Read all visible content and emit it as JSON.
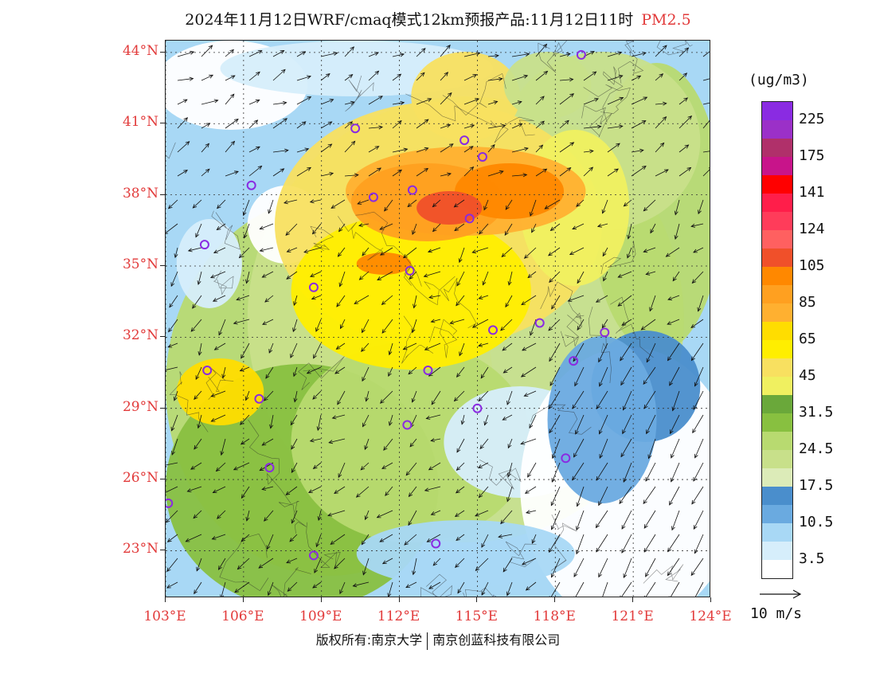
{
  "title": {
    "text": "2024年11月12日WRF/cmaq模式12km预报产品:11月12日11时",
    "pollutant": "PM2.5"
  },
  "map": {
    "lon_range": [
      103,
      124
    ],
    "lat_range": [
      21,
      44.5
    ],
    "lat_ticks": [
      {
        "value": 44,
        "label": "44°N"
      },
      {
        "value": 41,
        "label": "41°N"
      },
      {
        "value": 38,
        "label": "38°N"
      },
      {
        "value": 35,
        "label": "35°N"
      },
      {
        "value": 32,
        "label": "32°N"
      },
      {
        "value": 29,
        "label": "29°N"
      },
      {
        "value": 26,
        "label": "26°N"
      },
      {
        "value": 23,
        "label": "23°N"
      }
    ],
    "lon_ticks": [
      {
        "value": 103,
        "label": "103°E"
      },
      {
        "value": 106,
        "label": "106°E"
      },
      {
        "value": 109,
        "label": "109°E"
      },
      {
        "value": 112,
        "label": "112°E"
      },
      {
        "value": 115,
        "label": "115°E"
      },
      {
        "value": 118,
        "label": "118°E"
      },
      {
        "value": 121,
        "label": "121°E"
      },
      {
        "value": 124,
        "label": "124°E"
      }
    ],
    "cities": [
      {
        "lon": 119.0,
        "lat": 43.9
      },
      {
        "lon": 110.3,
        "lat": 40.8
      },
      {
        "lon": 114.5,
        "lat": 40.3
      },
      {
        "lon": 115.2,
        "lat": 39.6
      },
      {
        "lon": 111.0,
        "lat": 37.9
      },
      {
        "lon": 112.5,
        "lat": 38.2
      },
      {
        "lon": 114.7,
        "lat": 37.0
      },
      {
        "lon": 106.3,
        "lat": 38.4
      },
      {
        "lon": 104.5,
        "lat": 35.9
      },
      {
        "lon": 108.7,
        "lat": 34.1
      },
      {
        "lon": 112.4,
        "lat": 34.8
      },
      {
        "lon": 117.4,
        "lat": 32.6
      },
      {
        "lon": 115.6,
        "lat": 32.3
      },
      {
        "lon": 119.9,
        "lat": 32.2
      },
      {
        "lon": 118.7,
        "lat": 31.0
      },
      {
        "lon": 104.6,
        "lat": 30.6
      },
      {
        "lon": 113.1,
        "lat": 30.6
      },
      {
        "lon": 106.6,
        "lat": 29.4
      },
      {
        "lon": 115.0,
        "lat": 29.0
      },
      {
        "lon": 112.3,
        "lat": 28.3
      },
      {
        "lon": 107.0,
        "lat": 26.5
      },
      {
        "lon": 118.4,
        "lat": 26.9
      },
      {
        "lon": 103.1,
        "lat": 25.0
      },
      {
        "lon": 108.7,
        "lat": 22.8
      },
      {
        "lon": 113.4,
        "lat": 23.3
      }
    ]
  },
  "colorbar": {
    "unit": "(ug/m3)",
    "levels": [
      {
        "color": "#8a2be2",
        "label": "225"
      },
      {
        "color": "#9b30c8",
        "label": ""
      },
      {
        "color": "#b0306a",
        "label": "175"
      },
      {
        "color": "#c8148a",
        "label": ""
      },
      {
        "color": "#ff0000",
        "label": "141"
      },
      {
        "color": "#ff1e4a",
        "label": ""
      },
      {
        "color": "#ff3c5a",
        "label": "124"
      },
      {
        "color": "#ff6060",
        "label": ""
      },
      {
        "color": "#f0502a",
        "label": "105"
      },
      {
        "color": "#ff8800",
        "label": ""
      },
      {
        "color": "#ffa020",
        "label": "85"
      },
      {
        "color": "#ffb030",
        "label": ""
      },
      {
        "color": "#ffdd00",
        "label": "65"
      },
      {
        "color": "#ffee00",
        "label": ""
      },
      {
        "color": "#f8e060",
        "label": "45"
      },
      {
        "color": "#f0f060",
        "label": ""
      },
      {
        "color": "#6aa83a",
        "label": "31.5"
      },
      {
        "color": "#88c040",
        "label": ""
      },
      {
        "color": "#b8da70",
        "label": "24.5"
      },
      {
        "color": "#c8e08a",
        "label": ""
      },
      {
        "color": "#dcebb8",
        "label": "17.5"
      },
      {
        "color": "#4a8ecc",
        "label": ""
      },
      {
        "color": "#6aaae0",
        "label": "10.5"
      },
      {
        "color": "#a8d8f5",
        "label": ""
      },
      {
        "color": "#d6eefb",
        "label": "3.5"
      },
      {
        "color": "#ffffff",
        "label": ""
      }
    ]
  },
  "wind_ref": {
    "label": "10 m/s"
  },
  "copyright": {
    "left": "版权所有:南京大学",
    "right": "南京创蓝科技有限公司"
  }
}
